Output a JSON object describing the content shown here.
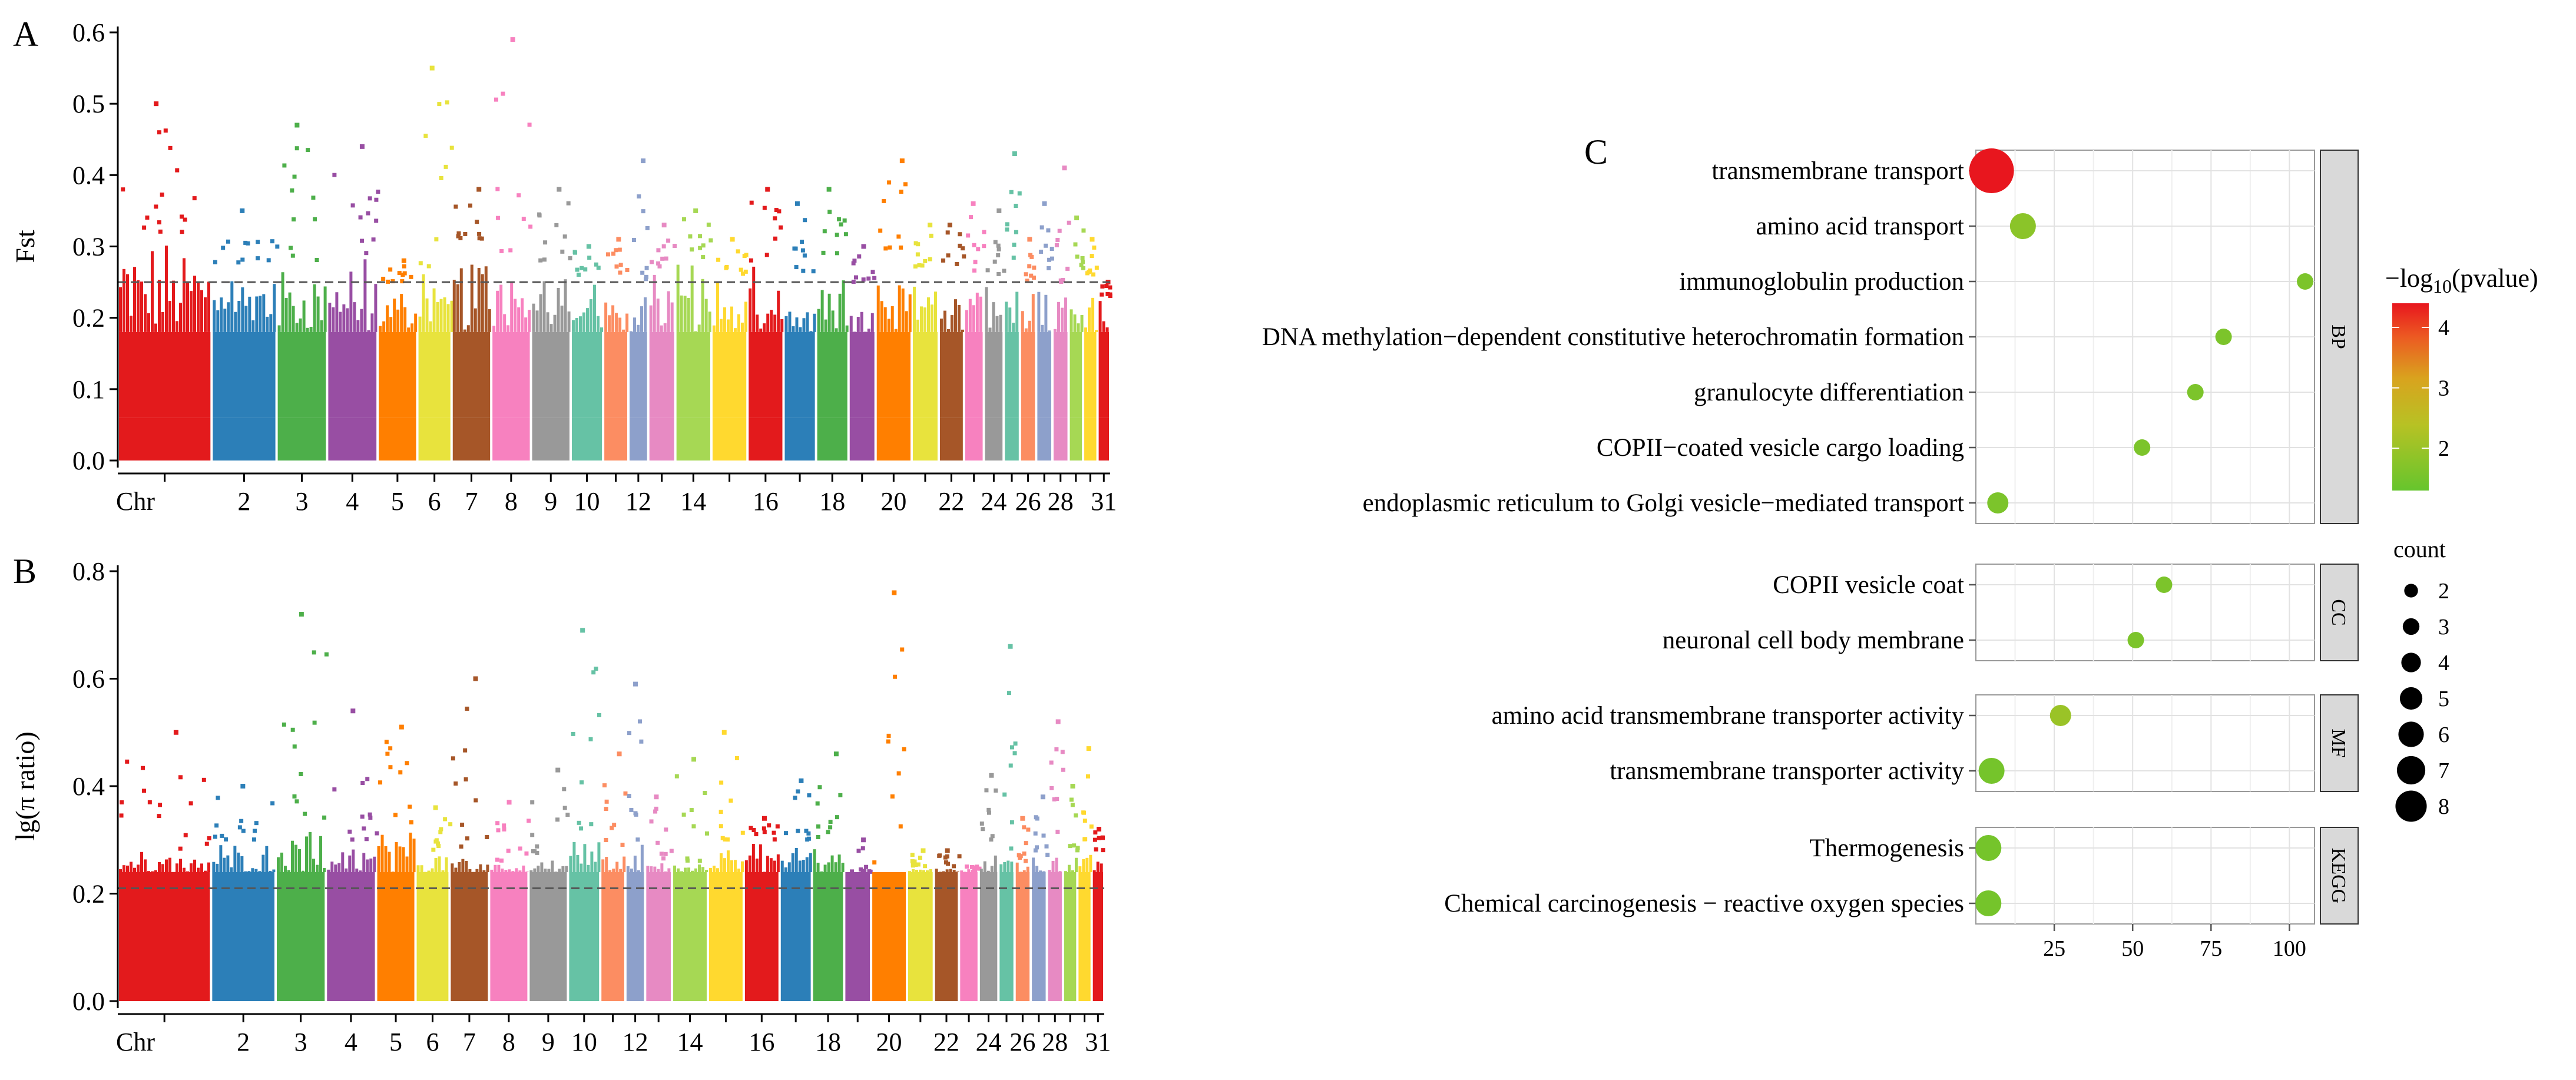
{
  "panel_labels": {
    "a": "A",
    "b": "B",
    "c": "C"
  },
  "chart_data": [
    {
      "id": "A",
      "type": "scatter",
      "subtype": "manhattan",
      "ylabel": "Fst",
      "xlabel": "Chr",
      "ylim": [
        0,
        0.6
      ],
      "yticks": [
        "0.0",
        "0.1",
        "0.2",
        "0.3",
        "0.4",
        "0.5",
        "0.6"
      ],
      "threshold": 0.25,
      "chromosomes": [
        "1",
        "2",
        "3",
        "4",
        "5",
        "6",
        "7",
        "8",
        "9",
        "10",
        "11",
        "12",
        "13",
        "14",
        "15",
        "16",
        "17",
        "18",
        "19",
        "20",
        "21",
        "22",
        "23",
        "24",
        "25",
        "26",
        "27",
        "28",
        "29",
        "30",
        "31"
      ],
      "chr_tick_labels": [
        "2",
        "3",
        "4",
        "5",
        "6",
        "7",
        "8",
        "9",
        "10",
        "12",
        "14",
        "16",
        "18",
        "20",
        "22",
        "24",
        "26",
        "28",
        "31"
      ],
      "chr_widths": [
        2.6,
        1.8,
        1.4,
        1.4,
        1.1,
        0.95,
        1.1,
        1.1,
        1.1,
        0.9,
        0.7,
        0.55,
        0.75,
        1.0,
        1.0,
        1.0,
        0.9,
        0.9,
        0.75,
        1.0,
        0.75,
        0.7,
        0.55,
        0.55,
        0.45,
        0.45,
        0.45,
        0.45,
        0.4,
        0.4,
        0.35
      ],
      "chr_body_max": [
        0.32,
        0.27,
        0.28,
        0.29,
        0.25,
        0.27,
        0.31,
        0.29,
        0.28,
        0.26,
        0.26,
        0.25,
        0.27,
        0.28,
        0.26,
        0.28,
        0.26,
        0.29,
        0.25,
        0.29,
        0.27,
        0.26,
        0.26,
        0.26,
        0.27,
        0.25,
        0.26,
        0.25,
        0.26,
        0.25,
        0.23
      ],
      "chr_peaks": [
        0.5,
        0.35,
        0.47,
        0.44,
        0.28,
        0.55,
        0.38,
        0.59,
        0.38,
        0.3,
        0.31,
        0.42,
        0.33,
        0.35,
        0.31,
        0.38,
        0.36,
        0.38,
        0.3,
        0.42,
        0.33,
        0.33,
        0.36,
        0.35,
        0.43,
        0.31,
        0.36,
        0.41,
        0.34,
        0.31,
        0.25
      ],
      "colors": [
        "#e31a1c",
        "#2c7fb8",
        "#4daf4a",
        "#984ea3",
        "#ff7f00",
        "#e8e33d",
        "#a65628",
        "#f781bf",
        "#999999",
        "#66c2a5",
        "#fc8d62",
        "#8da0cb",
        "#e78ac3",
        "#a6d854",
        "#ffd92f",
        "#e31a1c",
        "#2c7fb8",
        "#4daf4a",
        "#984ea3",
        "#ff7f00",
        "#e8e33d",
        "#a65628",
        "#f781bf",
        "#999999",
        "#66c2a5",
        "#fc8d62",
        "#8da0cb",
        "#e78ac3",
        "#a6d854",
        "#ffd92f",
        "#e31a1c"
      ]
    },
    {
      "id": "B",
      "type": "scatter",
      "subtype": "manhattan",
      "ylabel": "lg(π ratio)",
      "xlabel": "Chr",
      "ylim": [
        0,
        0.8
      ],
      "yticks": [
        "0.0",
        "0.2",
        "0.4",
        "0.6",
        "0.8"
      ],
      "threshold": 0.21,
      "chromosomes": [
        "1",
        "2",
        "3",
        "4",
        "5",
        "6",
        "7",
        "8",
        "9",
        "10",
        "11",
        "12",
        "13",
        "14",
        "15",
        "16",
        "17",
        "18",
        "19",
        "20",
        "21",
        "22",
        "23",
        "24",
        "25",
        "26",
        "27",
        "28",
        "29",
        "30",
        "31"
      ],
      "chr_tick_labels": [
        "2",
        "3",
        "4",
        "5",
        "6",
        "7",
        "8",
        "9",
        "10",
        "12",
        "14",
        "16",
        "18",
        "20",
        "22",
        "24",
        "26",
        "28",
        "31"
      ],
      "chr_widths": [
        2.6,
        1.8,
        1.4,
        1.4,
        1.1,
        0.95,
        1.1,
        1.1,
        1.1,
        0.9,
        0.7,
        0.55,
        0.75,
        1.0,
        1.0,
        1.0,
        0.9,
        0.9,
        0.75,
        1.0,
        0.75,
        0.7,
        0.55,
        0.55,
        0.45,
        0.45,
        0.45,
        0.45,
        0.4,
        0.4,
        0.35
      ],
      "chr_body_max": [
        0.28,
        0.3,
        0.33,
        0.3,
        0.33,
        0.28,
        0.27,
        0.26,
        0.27,
        0.32,
        0.28,
        0.3,
        0.26,
        0.26,
        0.3,
        0.3,
        0.3,
        0.3,
        0.24,
        0.24,
        0.25,
        0.25,
        0.25,
        0.3,
        0.28,
        0.26,
        0.27,
        0.28,
        0.28,
        0.3,
        0.28
      ],
      "chr_peaks": [
        0.5,
        0.4,
        0.72,
        0.54,
        0.51,
        0.36,
        0.6,
        0.37,
        0.43,
        0.69,
        0.46,
        0.59,
        0.38,
        0.45,
        0.5,
        0.34,
        0.41,
        0.46,
        0.3,
        0.76,
        0.28,
        0.28,
        0.24,
        0.42,
        0.66,
        0.34,
        0.38,
        0.52,
        0.4,
        0.47,
        0.32
      ],
      "colors": [
        "#e31a1c",
        "#2c7fb8",
        "#4daf4a",
        "#984ea3",
        "#ff7f00",
        "#e8e33d",
        "#a65628",
        "#f781bf",
        "#999999",
        "#66c2a5",
        "#fc8d62",
        "#8da0cb",
        "#e78ac3",
        "#a6d854",
        "#ffd92f",
        "#e31a1c",
        "#2c7fb8",
        "#4daf4a",
        "#984ea3",
        "#ff7f00",
        "#e8e33d",
        "#a65628",
        "#f781bf",
        "#999999",
        "#66c2a5",
        "#fc8d62",
        "#8da0cb",
        "#e78ac3",
        "#a6d854",
        "#ffd92f",
        "#e31a1c"
      ]
    },
    {
      "id": "C",
      "type": "scatter",
      "subtype": "enrichment-dotplot",
      "xlim": [
        0,
        108
      ],
      "xticks": [
        25,
        50,
        75,
        100
      ],
      "legend_color_title": "−log",
      "legend_color_title_sub": "10",
      "legend_color_title_tail": "(pvalue)",
      "color_range": [
        1.3,
        4.4
      ],
      "color_ticks": [
        2,
        3,
        4
      ],
      "legend_size_title": "count",
      "size_range": [
        2,
        8
      ],
      "size_ticks": [
        2,
        3,
        4,
        5,
        6,
        7,
        8
      ],
      "facets": [
        {
          "name": "BP",
          "terms": [
            {
              "label": "transmembrane transport",
              "x": 5,
              "count": 8,
              "logp": 4.4
            },
            {
              "label": "amino acid transport",
              "x": 15,
              "count": 4,
              "logp": 1.8
            },
            {
              "label": "immunoglobulin production",
              "x": 105,
              "count": 2,
              "logp": 1.6
            },
            {
              "label": "DNA methylation−dependent constitutive heterochromatin formation",
              "x": 79,
              "count": 2,
              "logp": 1.6
            },
            {
              "label": "granulocyte differentiation",
              "x": 70,
              "count": 2,
              "logp": 1.6
            },
            {
              "label": "COPII−coated vesicle cargo loading",
              "x": 53,
              "count": 2,
              "logp": 1.6
            },
            {
              "label": "endoplasmic reticulum to Golgi vesicle−mediated transport",
              "x": 7,
              "count": 3,
              "logp": 1.6
            }
          ]
        },
        {
          "name": "CC",
          "terms": [
            {
              "label": "COPII vesicle coat",
              "x": 60,
              "count": 2,
              "logp": 1.6
            },
            {
              "label": "neuronal cell body membrane",
              "x": 51,
              "count": 2,
              "logp": 1.6
            }
          ]
        },
        {
          "name": "MF",
          "terms": [
            {
              "label": "amino acid transmembrane transporter activity",
              "x": 27,
              "count": 3,
              "logp": 2.0
            },
            {
              "label": "transmembrane transporter activity",
              "x": 5,
              "count": 4,
              "logp": 1.5
            }
          ]
        },
        {
          "name": "KEGG",
          "terms": [
            {
              "label": "Thermogenesis",
              "x": 4,
              "count": 4,
              "logp": 1.5
            },
            {
              "label": "Chemical carcinogenesis − reactive oxygen species",
              "x": 4,
              "count": 4,
              "logp": 1.5
            }
          ]
        }
      ]
    }
  ]
}
